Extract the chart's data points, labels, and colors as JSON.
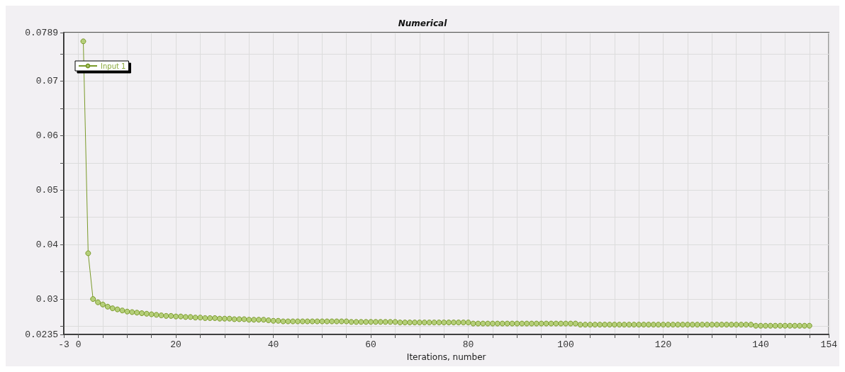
{
  "chart_data": {
    "type": "line",
    "title": "Numerical",
    "xlabel": "Iterations, number",
    "x": [
      1,
      2,
      3,
      4,
      5,
      6,
      7,
      8,
      9,
      10,
      11,
      12,
      13,
      14,
      15,
      16,
      17,
      18,
      19,
      20,
      21,
      22,
      23,
      24,
      25,
      26,
      27,
      28,
      29,
      30,
      31,
      32,
      33,
      34,
      35,
      36,
      37,
      38,
      39,
      40,
      41,
      42,
      43,
      44,
      45,
      46,
      47,
      48,
      49,
      50,
      51,
      52,
      53,
      54,
      55,
      56,
      57,
      58,
      59,
      60,
      61,
      62,
      63,
      64,
      65,
      66,
      67,
      68,
      69,
      70,
      71,
      72,
      73,
      74,
      75,
      76,
      77,
      78,
      79,
      80,
      81,
      82,
      83,
      84,
      85,
      86,
      87,
      88,
      89,
      90,
      91,
      92,
      93,
      94,
      95,
      96,
      97,
      98,
      99,
      100,
      101,
      102,
      103,
      104,
      105,
      106,
      107,
      108,
      109,
      110,
      111,
      112,
      113,
      114,
      115,
      116,
      117,
      118,
      119,
      120,
      121,
      122,
      123,
      124,
      125,
      126,
      127,
      128,
      129,
      130,
      131,
      132,
      133,
      134,
      135,
      136,
      137,
      138,
      139,
      140,
      141,
      142,
      143,
      144,
      145,
      146,
      147,
      148,
      149,
      150
    ],
    "series": [
      {
        "name": "Input 1",
        "color": "#7a9a2a",
        "values": [
          0.0773,
          0.0384,
          0.03,
          0.0294,
          0.029,
          0.0286,
          0.0283,
          0.0281,
          0.0279,
          0.0277,
          0.0276,
          0.0275,
          0.0274,
          0.0273,
          0.0272,
          0.0271,
          0.027,
          0.0269,
          0.0269,
          0.0268,
          0.0268,
          0.0267,
          0.0267,
          0.0266,
          0.0266,
          0.0265,
          0.0265,
          0.0265,
          0.0264,
          0.0264,
          0.0264,
          0.0263,
          0.0263,
          0.0263,
          0.0262,
          0.0262,
          0.0262,
          0.0262,
          0.0261,
          0.026,
          0.026,
          0.0259,
          0.0259,
          0.0259,
          0.0259,
          0.0259,
          0.0259,
          0.0259,
          0.0259,
          0.0259,
          0.0259,
          0.0259,
          0.0259,
          0.0259,
          0.0259,
          0.0258,
          0.0258,
          0.0258,
          0.0258,
          0.0258,
          0.0258,
          0.0258,
          0.0258,
          0.0258,
          0.0258,
          0.0257,
          0.0257,
          0.0257,
          0.0257,
          0.0257,
          0.0257,
          0.0257,
          0.0257,
          0.0257,
          0.0257,
          0.0257,
          0.0257,
          0.0257,
          0.0257,
          0.0257,
          0.0255,
          0.0255,
          0.0255,
          0.0255,
          0.0255,
          0.0255,
          0.0255,
          0.0255,
          0.0255,
          0.0255,
          0.0255,
          0.0255,
          0.0255,
          0.0255,
          0.0255,
          0.0255,
          0.0255,
          0.0255,
          0.0255,
          0.0255,
          0.0255,
          0.0255,
          0.0253,
          0.0253,
          0.0253,
          0.0253,
          0.0253,
          0.0253,
          0.0253,
          0.0253,
          0.0253,
          0.0253,
          0.0253,
          0.0253,
          0.0253,
          0.0253,
          0.0253,
          0.0253,
          0.0253,
          0.0253,
          0.0253,
          0.0253,
          0.0253,
          0.0253,
          0.0253,
          0.0253,
          0.0253,
          0.0253,
          0.0253,
          0.0253,
          0.0253,
          0.0253,
          0.0253,
          0.0253,
          0.0253,
          0.0253,
          0.0253,
          0.0253,
          0.0251,
          0.0251,
          0.0251,
          0.0251,
          0.0251,
          0.0251,
          0.0251,
          0.0251,
          0.0251,
          0.0251,
          0.0251,
          0.0251
        ]
      }
    ],
    "xlim": [
      -3,
      154
    ],
    "xticks": [
      -3,
      0,
      {
        "value": 5,
        "label": null
      },
      {
        "value": 10,
        "label": null
      },
      {
        "value": 15,
        "label": null
      },
      20,
      {
        "value": 25,
        "label": null
      },
      {
        "value": 30,
        "label": null
      },
      {
        "value": 35,
        "label": null
      },
      40,
      {
        "value": 45,
        "label": null
      },
      {
        "value": 50,
        "label": null
      },
      {
        "value": 55,
        "label": null
      },
      60,
      {
        "value": 65,
        "label": null
      },
      {
        "value": 70,
        "label": null
      },
      {
        "value": 75,
        "label": null
      },
      80,
      {
        "value": 85,
        "label": null
      },
      {
        "value": 90,
        "label": null
      },
      {
        "value": 95,
        "label": null
      },
      100,
      {
        "value": 105,
        "label": null
      },
      {
        "value": 110,
        "label": null
      },
      {
        "value": 115,
        "label": null
      },
      120,
      {
        "value": 125,
        "label": null
      },
      {
        "value": 130,
        "label": null
      },
      {
        "value": 135,
        "label": null
      },
      140,
      {
        "value": 145,
        "label": null
      },
      {
        "value": 150,
        "label": null
      },
      154
    ],
    "ylim": [
      0.0235,
      0.0789
    ],
    "yticks": [
      0.0235,
      {
        "value": 0.025,
        "label": null
      },
      0.03,
      {
        "value": 0.035,
        "label": null
      },
      0.04,
      {
        "value": 0.045,
        "label": null
      },
      0.05,
      {
        "value": 0.055,
        "label": null
      },
      0.06,
      {
        "value": 0.065,
        "label": null
      },
      0.07,
      {
        "value": 0.075,
        "label": null
      },
      0.0789
    ],
    "grid": true,
    "legend": "top left",
    "marker": "circle",
    "line_style": "solid"
  }
}
